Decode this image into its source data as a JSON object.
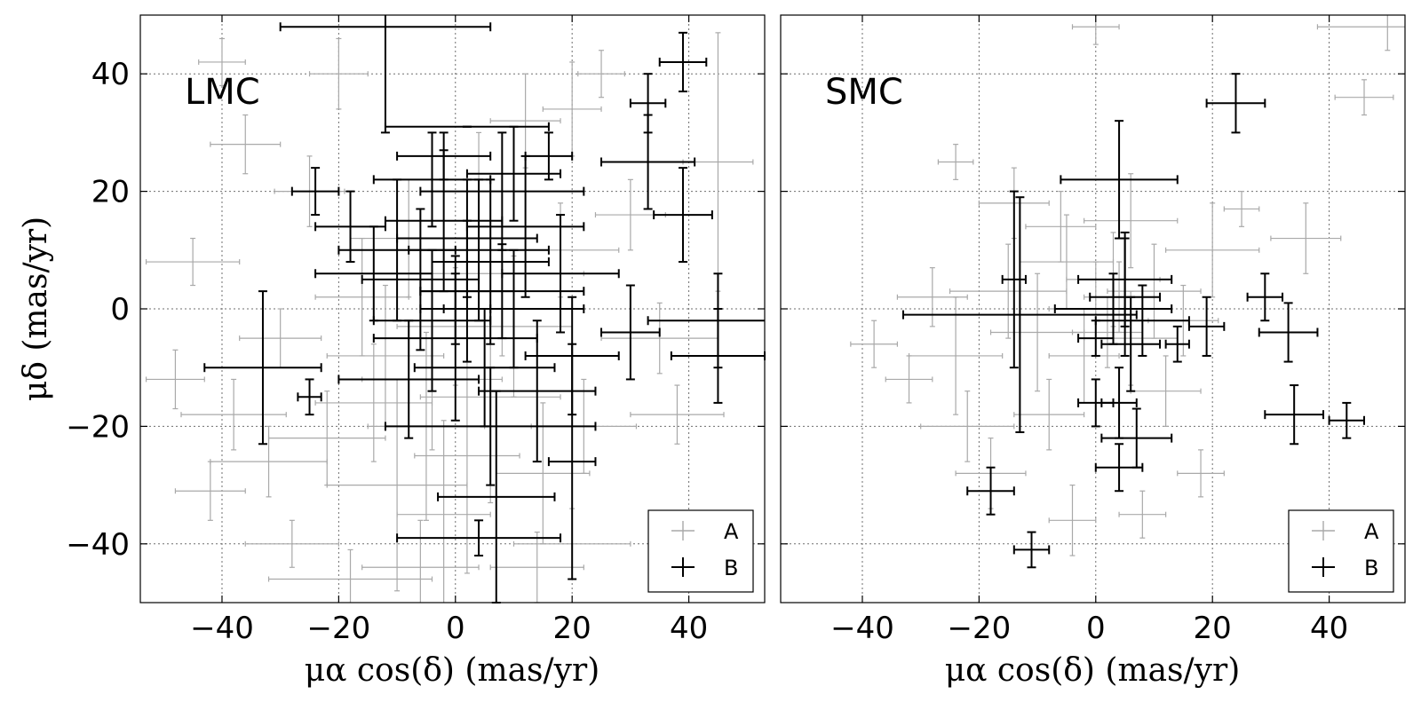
{
  "chart_data": [
    {
      "type": "scatter",
      "panel_label": "LMC",
      "xlabel": "μα cos(δ) (mas/yr)",
      "ylabel": "μδ (mas/yr)",
      "xlim": [
        -54,
        53
      ],
      "ylim": [
        -50,
        50
      ],
      "xticks": [
        -40,
        -20,
        0,
        20,
        40
      ],
      "yticks": [
        -40,
        -20,
        0,
        20,
        40
      ],
      "grid": true,
      "legend": {
        "position": "lower-right",
        "entries": [
          "A",
          "B"
        ]
      },
      "series": [
        {
          "name": "A",
          "color": "#a9a9a9",
          "points": [
            {
              "x": -40,
              "y": 42,
              "xerr": 4,
              "yerr": 4
            },
            {
              "x": -36,
              "y": 28,
              "xerr": 6,
              "yerr": 5
            },
            {
              "x": -20,
              "y": 40,
              "xerr": 5,
              "yerr": 6
            },
            {
              "x": -45,
              "y": 8,
              "xerr": 8,
              "yerr": 4
            },
            {
              "x": -30,
              "y": -5,
              "xerr": 7,
              "yerr": 5
            },
            {
              "x": -38,
              "y": -18,
              "xerr": 9,
              "yerr": 6
            },
            {
              "x": -42,
              "y": -31,
              "xerr": 6,
              "yerr": 5
            },
            {
              "x": -28,
              "y": -40,
              "xerr": 8,
              "yerr": 4
            },
            {
              "x": -18,
              "y": -46,
              "xerr": 14,
              "yerr": 5
            },
            {
              "x": -10,
              "y": -30,
              "xerr": 12,
              "yerr": 18
            },
            {
              "x": -5,
              "y": -20,
              "xerr": 10,
              "yerr": 16
            },
            {
              "x": -2,
              "y": -35,
              "xerr": 8,
              "yerr": 16
            },
            {
              "x": 2,
              "y": -25,
              "xerr": 9,
              "yerr": 20
            },
            {
              "x": 6,
              "y": -15,
              "xerr": 12,
              "yerr": 18
            },
            {
              "x": -12,
              "y": -8,
              "xerr": 10,
              "yerr": 12
            },
            {
              "x": -16,
              "y": 2,
              "xerr": 8,
              "yerr": 10
            },
            {
              "x": -22,
              "y": -22,
              "xerr": 10,
              "yerr": 8
            },
            {
              "x": -8,
              "y": 12,
              "xerr": 10,
              "yerr": 10
            },
            {
              "x": 4,
              "y": 20,
              "xerr": 8,
              "yerr": 10
            },
            {
              "x": 10,
              "y": -3,
              "xerr": 10,
              "yerr": 12
            },
            {
              "x": 15,
              "y": -28,
              "xerr": 8,
              "yerr": 12
            },
            {
              "x": 22,
              "y": -20,
              "xerr": 9,
              "yerr": 8
            },
            {
              "x": 12,
              "y": 32,
              "xerr": 6,
              "yerr": 8
            },
            {
              "x": 20,
              "y": 34,
              "xerr": 5,
              "yerr": 8
            },
            {
              "x": 25,
              "y": 40,
              "xerr": 4,
              "yerr": 4
            },
            {
              "x": 35,
              "y": -5,
              "xerr": 10,
              "yerr": 6
            },
            {
              "x": 38,
              "y": -18,
              "xerr": 8,
              "yerr": 5
            },
            {
              "x": 20,
              "y": -40,
              "xerr": 10,
              "yerr": 6
            },
            {
              "x": 45,
              "y": 25,
              "xerr": 6,
              "yerr": 22
            },
            {
              "x": -25,
              "y": 20,
              "xerr": 6,
              "yerr": 6
            },
            {
              "x": -14,
              "y": -16,
              "xerr": 10,
              "yerr": 10
            },
            {
              "x": -4,
              "y": -12,
              "xerr": 12,
              "yerr": 12
            },
            {
              "x": 8,
              "y": 6,
              "xerr": 14,
              "yerr": 14
            },
            {
              "x": 0,
              "y": -3,
              "xerr": 10,
              "yerr": 10
            },
            {
              "x": -6,
              "y": -44,
              "xerr": 10,
              "yerr": 8
            },
            {
              "x": 14,
              "y": -44,
              "xerr": 8,
              "yerr": 6
            },
            {
              "x": -32,
              "y": -26,
              "xerr": 10,
              "yerr": 6
            },
            {
              "x": 30,
              "y": 16,
              "xerr": 6,
              "yerr": 6
            },
            {
              "x": -48,
              "y": -12,
              "xerr": 5,
              "yerr": 5
            },
            {
              "x": 18,
              "y": 10,
              "xerr": 10,
              "yerr": 8
            }
          ]
        },
        {
          "name": "B",
          "color": "#000000",
          "points": [
            {
              "x": -12,
              "y": 48,
              "xerr": 18,
              "yerr": 18
            },
            {
              "x": 2,
              "y": 31,
              "xerr": 14,
              "yerr": 0
            },
            {
              "x": 39,
              "y": 42,
              "xerr": 4,
              "yerr": 5
            },
            {
              "x": 33,
              "y": 35,
              "xerr": 3,
              "yerr": 5
            },
            {
              "x": 33,
              "y": 25,
              "xerr": 8,
              "yerr": 8
            },
            {
              "x": 39,
              "y": 16,
              "xerr": 5,
              "yerr": 8
            },
            {
              "x": -24,
              "y": 20,
              "xerr": 4,
              "yerr": 4
            },
            {
              "x": -33,
              "y": -10,
              "xerr": 10,
              "yerr": 13
            },
            {
              "x": -25,
              "y": -15,
              "xerr": 2,
              "yerr": 3
            },
            {
              "x": 45,
              "y": -8,
              "xerr": 8,
              "yerr": 8
            },
            {
              "x": 45,
              "y": -2,
              "xerr": 12,
              "yerr": 8
            },
            {
              "x": 30,
              "y": -4,
              "xerr": 5,
              "yerr": 8
            },
            {
              "x": 4,
              "y": 10,
              "xerr": 12,
              "yerr": 12
            },
            {
              "x": -2,
              "y": 15,
              "xerr": 10,
              "yerr": 12
            },
            {
              "x": 8,
              "y": 20,
              "xerr": 14,
              "yerr": 10
            },
            {
              "x": -6,
              "y": 5,
              "xerr": 10,
              "yerr": 12
            },
            {
              "x": 10,
              "y": 0,
              "xerr": 12,
              "yerr": 10
            },
            {
              "x": 0,
              "y": -5,
              "xerr": 14,
              "yerr": 14
            },
            {
              "x": -4,
              "y": 22,
              "xerr": 10,
              "yerr": 8
            },
            {
              "x": 6,
              "y": 8,
              "xerr": 10,
              "yerr": 14
            },
            {
              "x": 12,
              "y": 14,
              "xerr": 10,
              "yerr": 12
            },
            {
              "x": -8,
              "y": -12,
              "xerr": 12,
              "yerr": 10
            },
            {
              "x": 14,
              "y": -14,
              "xerr": 10,
              "yerr": 12
            },
            {
              "x": 2,
              "y": 3,
              "xerr": 8,
              "yerr": 12
            },
            {
              "x": -10,
              "y": 10,
              "xerr": 10,
              "yerr": 12
            },
            {
              "x": 6,
              "y": -20,
              "xerr": 18,
              "yerr": 10
            },
            {
              "x": 4,
              "y": -39,
              "xerr": 14,
              "yerr": 3
            },
            {
              "x": 7,
              "y": -32,
              "xerr": 10,
              "yerr": 18
            },
            {
              "x": 20,
              "y": -26,
              "xerr": 4,
              "yerr": 20
            },
            {
              "x": 18,
              "y": 6,
              "xerr": 10,
              "yerr": 10
            },
            {
              "x": 16,
              "y": 26,
              "xerr": 4,
              "yerr": 4
            },
            {
              "x": 20,
              "y": -8,
              "xerr": 8,
              "yerr": 10
            },
            {
              "x": -14,
              "y": 6,
              "xerr": 10,
              "yerr": 8
            },
            {
              "x": -2,
              "y": 26,
              "xerr": 8,
              "yerr": 4
            },
            {
              "x": 10,
              "y": 23,
              "xerr": 8,
              "yerr": 8
            },
            {
              "x": -18,
              "y": 14,
              "xerr": 6,
              "yerr": 6
            },
            {
              "x": 0,
              "y": 0,
              "xerr": 6,
              "yerr": 6
            },
            {
              "x": 5,
              "y": -10,
              "xerr": 12,
              "yerr": 10
            },
            {
              "x": 2,
              "y": 12,
              "xerr": 12,
              "yerr": 10
            },
            {
              "x": 8,
              "y": 3,
              "xerr": 14,
              "yerr": 8
            },
            {
              "x": -4,
              "y": -2,
              "xerr": 10,
              "yerr": 12
            }
          ]
        }
      ]
    },
    {
      "type": "scatter",
      "panel_label": "SMC",
      "xlabel": "μα cos(δ) (mas/yr)",
      "ylabel": "",
      "xlim": [
        -54,
        53
      ],
      "ylim": [
        -50,
        50
      ],
      "xticks": [
        -40,
        -20,
        0,
        20,
        40
      ],
      "yticks": [
        -40,
        -20,
        0,
        20,
        40
      ],
      "grid": true,
      "legend": {
        "position": "lower-right",
        "entries": [
          "A",
          "B"
        ]
      },
      "series": [
        {
          "name": "A",
          "color": "#a9a9a9",
          "points": [
            {
              "x": -28,
              "y": 2,
              "xerr": 6,
              "yerr": 5
            },
            {
              "x": -32,
              "y": -12,
              "xerr": 4,
              "yerr": 4
            },
            {
              "x": -24,
              "y": -8,
              "xerr": 8,
              "yerr": 10
            },
            {
              "x": -15,
              "y": 3,
              "xerr": 10,
              "yerr": 8
            },
            {
              "x": -10,
              "y": -4,
              "xerr": 8,
              "yerr": 10
            },
            {
              "x": -5,
              "y": 8,
              "xerr": 8,
              "yerr": 8
            },
            {
              "x": -2,
              "y": -8,
              "xerr": 6,
              "yerr": 8
            },
            {
              "x": 0,
              "y": 0,
              "xerr": 8,
              "yerr": 8
            },
            {
              "x": 3,
              "y": 5,
              "xerr": 8,
              "yerr": 8
            },
            {
              "x": 6,
              "y": -5,
              "xerr": 8,
              "yerr": 8
            },
            {
              "x": 10,
              "y": 3,
              "xerr": 8,
              "yerr": 8
            },
            {
              "x": 15,
              "y": -2,
              "xerr": 6,
              "yerr": 6
            },
            {
              "x": 20,
              "y": 10,
              "xerr": 8,
              "yerr": 8
            },
            {
              "x": 25,
              "y": 17,
              "xerr": 3,
              "yerr": 3
            },
            {
              "x": 36,
              "y": 12,
              "xerr": 6,
              "yerr": 6
            },
            {
              "x": 46,
              "y": 36,
              "xerr": 5,
              "yerr": 3
            },
            {
              "x": 50,
              "y": 48,
              "xerr": 12,
              "yerr": 4
            },
            {
              "x": -24,
              "y": 25,
              "xerr": 3,
              "yerr": 3
            },
            {
              "x": -18,
              "y": -28,
              "xerr": 6,
              "yerr": 6
            },
            {
              "x": -22,
              "y": -20,
              "xerr": 8,
              "yerr": 6
            },
            {
              "x": -4,
              "y": -36,
              "xerr": 4,
              "yerr": 6
            },
            {
              "x": 8,
              "y": -35,
              "xerr": 4,
              "yerr": 4
            },
            {
              "x": 18,
              "y": -28,
              "xerr": 4,
              "yerr": 4
            },
            {
              "x": -14,
              "y": 18,
              "xerr": 6,
              "yerr": 6
            },
            {
              "x": -6,
              "y": 14,
              "xerr": 6,
              "yerr": 6
            },
            {
              "x": 6,
              "y": 15,
              "xerr": 8,
              "yerr": 8
            },
            {
              "x": 12,
              "y": -14,
              "xerr": 6,
              "yerr": 6
            },
            {
              "x": -8,
              "y": -18,
              "xerr": 6,
              "yerr": 6
            },
            {
              "x": 0,
              "y": 48,
              "xerr": 4,
              "yerr": 3
            },
            {
              "x": -38,
              "y": -6,
              "xerr": 4,
              "yerr": 4
            },
            {
              "x": 2,
              "y": -4,
              "xerr": 6,
              "yerr": 6
            },
            {
              "x": 4,
              "y": 2,
              "xerr": 6,
              "yerr": 6
            }
          ]
        },
        {
          "name": "B",
          "color": "#000000",
          "points": [
            {
              "x": 24,
              "y": 35,
              "xerr": 5,
              "yerr": 5
            },
            {
              "x": 4,
              "y": 22,
              "xerr": 10,
              "yerr": 10
            },
            {
              "x": -14,
              "y": 5,
              "xerr": 2,
              "yerr": 15
            },
            {
              "x": -13,
              "y": -1,
              "xerr": 20,
              "yerr": 20
            },
            {
              "x": 5,
              "y": 5,
              "xerr": 8,
              "yerr": 8
            },
            {
              "x": 3,
              "y": 0,
              "xerr": 10,
              "yerr": 6
            },
            {
              "x": 8,
              "y": -2,
              "xerr": 8,
              "yerr": 6
            },
            {
              "x": 14,
              "y": -6,
              "xerr": 2,
              "yerr": 3
            },
            {
              "x": 19,
              "y": -3,
              "xerr": 3,
              "yerr": 5
            },
            {
              "x": 29,
              "y": 2,
              "xerr": 3,
              "yerr": 4
            },
            {
              "x": 33,
              "y": -4,
              "xerr": 5,
              "yerr": 5
            },
            {
              "x": 34,
              "y": -18,
              "xerr": 5,
              "yerr": 5
            },
            {
              "x": 43,
              "y": -19,
              "xerr": 3,
              "yerr": 3
            },
            {
              "x": 0,
              "y": -16,
              "xerr": 3,
              "yerr": 4
            },
            {
              "x": 4,
              "y": -16,
              "xerr": 3,
              "yerr": 6
            },
            {
              "x": 7,
              "y": -22,
              "xerr": 6,
              "yerr": 5
            },
            {
              "x": 4,
              "y": -27,
              "xerr": 4,
              "yerr": 4
            },
            {
              "x": 0,
              "y": -5,
              "xerr": 3,
              "yerr": 3
            },
            {
              "x": -18,
              "y": -31,
              "xerr": 4,
              "yerr": 4
            },
            {
              "x": -11,
              "y": -41,
              "xerr": 3,
              "yerr": 3
            },
            {
              "x": 5,
              "y": 2,
              "xerr": 6,
              "yerr": 10
            },
            {
              "x": 6,
              "y": -6,
              "xerr": 5,
              "yerr": 8
            }
          ]
        }
      ]
    }
  ]
}
